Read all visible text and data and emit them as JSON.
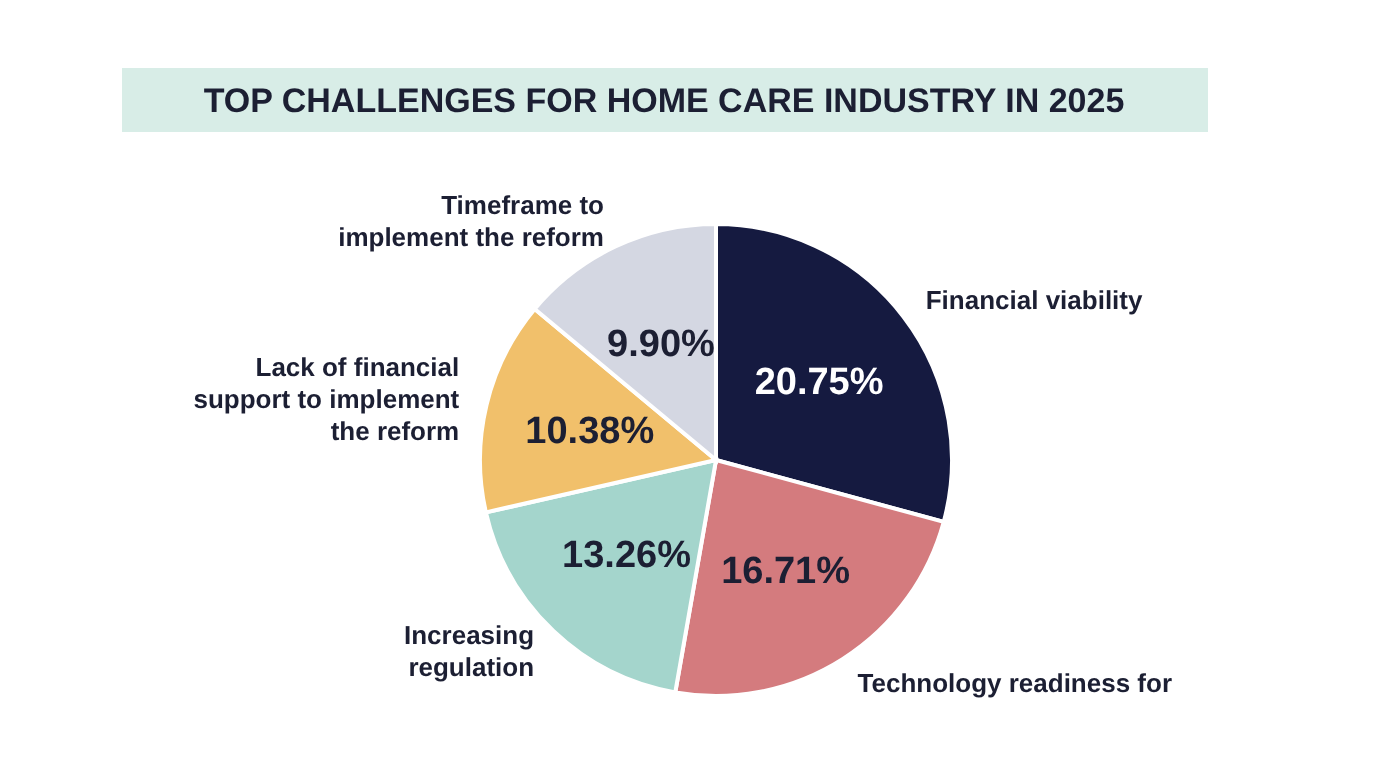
{
  "chart_data": {
    "type": "pie",
    "title": "TOP CHALLENGES FOR HOME CARE INDUSTRY IN 2025",
    "categories": [
      "Financial viability",
      "Technology readiness for",
      "Increasing regulation",
      "Lack of financial support to implement the reform",
      "Timeframe to implement the reform"
    ],
    "values": [
      20.75,
      16.71,
      13.26,
      10.38,
      9.9
    ],
    "value_labels": [
      "20.75%",
      "16.71%",
      "13.26%",
      "10.38%",
      "9.90%"
    ],
    "colors": [
      "#151a40",
      "#d47b7e",
      "#a4d5cc",
      "#f1c06b",
      "#d4d7e2"
    ]
  }
}
